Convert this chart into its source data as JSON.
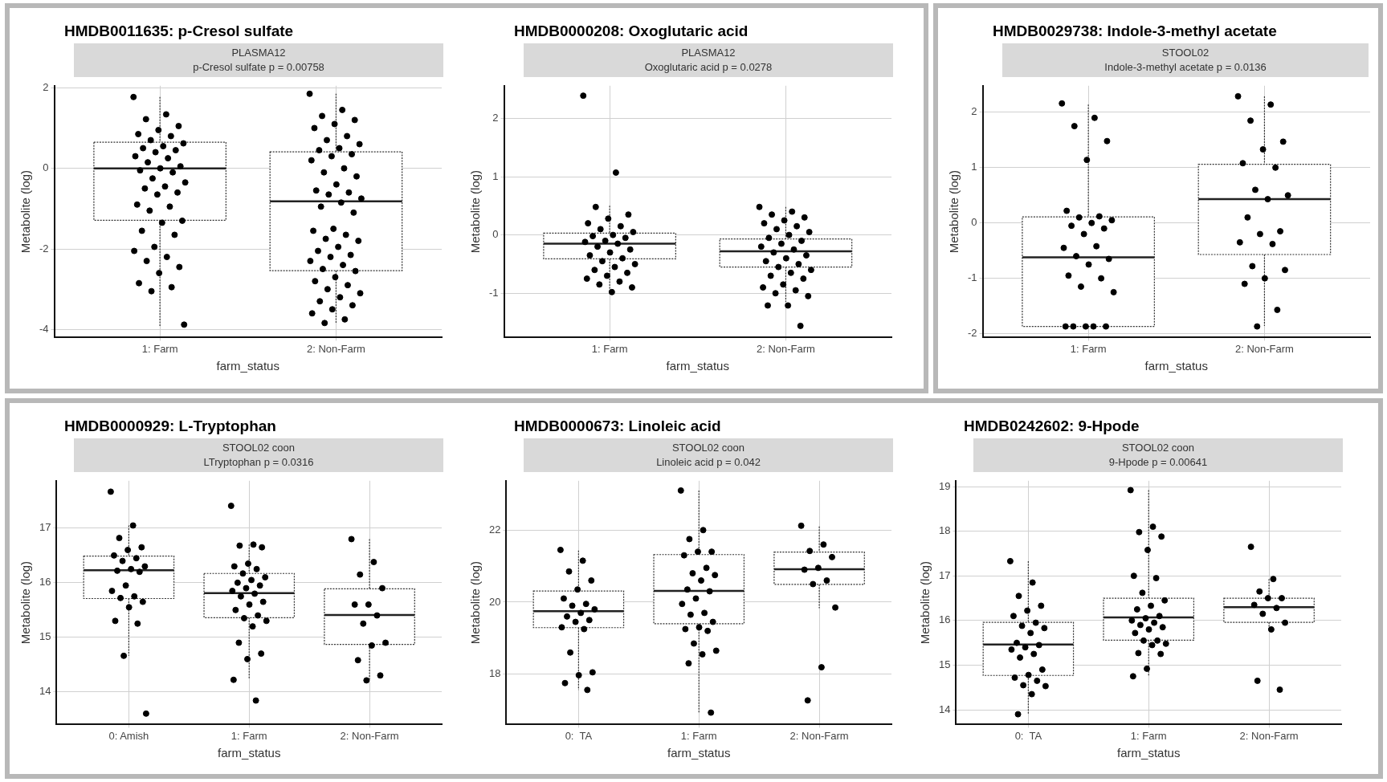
{
  "chart_data": [
    {
      "type": "box",
      "title": "HMDB0011635: p-Cresol sulfate",
      "subtitle": "PLASMA12",
      "annotations": [
        "p-Cresol sulfate p = 0.00758"
      ],
      "xlabel": "farm_status",
      "ylabel": "Metabolite (log)",
      "categories": [
        "1: Farm",
        "2: Non-Farm"
      ],
      "ylim": [
        -4.2,
        2.05
      ],
      "yticks": [
        -4,
        -2,
        0,
        2
      ],
      "grid": true,
      "marker": "circle",
      "boxes": [
        {
          "low": -3.92,
          "q1": -1.29,
          "median": 0,
          "q3": 0.65,
          "high": 1.77
        },
        {
          "low": -3.84,
          "q1": -2.54,
          "median": -0.82,
          "q3": 0.41,
          "high": 1.85
        }
      ],
      "series": [
        {
          "type": "scatter",
          "color": "#000000",
          "x": [
            "1: Farm",
            "1: Farm",
            "1: Farm",
            "1: Farm",
            "1: Farm",
            "1: Farm",
            "1: Farm",
            "1: Farm",
            "1: Farm",
            "1: Farm",
            "1: Farm",
            "1: Farm",
            "1: Farm",
            "1: Farm",
            "1: Farm",
            "1: Farm",
            "1: Farm",
            "1: Farm",
            "1: Farm",
            "1: Farm",
            "1: Farm",
            "1: Farm",
            "1: Farm",
            "1: Farm",
            "1: Farm",
            "1: Farm",
            "1: Farm",
            "1: Farm",
            "1: Farm",
            "1: Farm",
            "1: Farm",
            "1: Farm",
            "1: Farm",
            "1: Farm",
            "1: Farm",
            "1: Farm",
            "1: Farm",
            "1: Farm",
            "1: Farm",
            "1: Farm",
            "1: Farm",
            "1: Farm",
            "1: Farm"
          ],
          "values": [
            1.77,
            1.34,
            1.22,
            1.05,
            0.95,
            0.85,
            0.8,
            0.7,
            0.62,
            0.55,
            0.5,
            0.45,
            0.4,
            0.3,
            0.25,
            0.15,
            0.05,
            0,
            -0.05,
            -0.1,
            -0.25,
            -0.35,
            -0.45,
            -0.5,
            -0.6,
            -0.65,
            -0.9,
            -0.95,
            -1.05,
            -1.3,
            -1.35,
            -1.55,
            -1.65,
            -1.95,
            -2.05,
            -2.2,
            -2.3,
            -2.45,
            -2.6,
            -2.85,
            -2.95,
            -3.05,
            -3.88
          ]
        },
        {
          "type": "scatter",
          "color": "#000000",
          "x": [
            "2: Non-Farm",
            "2: Non-Farm",
            "2: Non-Farm",
            "2: Non-Farm",
            "2: Non-Farm",
            "2: Non-Farm",
            "2: Non-Farm",
            "2: Non-Farm",
            "2: Non-Farm",
            "2: Non-Farm",
            "2: Non-Farm",
            "2: Non-Farm",
            "2: Non-Farm",
            "2: Non-Farm",
            "2: Non-Farm",
            "2: Non-Farm",
            "2: Non-Farm",
            "2: Non-Farm",
            "2: Non-Farm",
            "2: Non-Farm",
            "2: Non-Farm",
            "2: Non-Farm",
            "2: Non-Farm",
            "2: Non-Farm",
            "2: Non-Farm",
            "2: Non-Farm",
            "2: Non-Farm",
            "2: Non-Farm",
            "2: Non-Farm",
            "2: Non-Farm",
            "2: Non-Farm",
            "2: Non-Farm",
            "2: Non-Farm",
            "2: Non-Farm",
            "2: Non-Farm",
            "2: Non-Farm",
            "2: Non-Farm",
            "2: Non-Farm",
            "2: Non-Farm",
            "2: Non-Farm",
            "2: Non-Farm",
            "2: Non-Farm",
            "2: Non-Farm",
            "2: Non-Farm",
            "2: Non-Farm",
            "2: Non-Farm",
            "2: Non-Farm",
            "2: Non-Farm",
            "2: Non-Farm",
            "2: Non-Farm"
          ],
          "values": [
            1.85,
            1.45,
            1.3,
            1.2,
            1.1,
            1.0,
            0.8,
            0.7,
            0.6,
            0.5,
            0.45,
            0.35,
            0.3,
            0.2,
            0,
            -0.1,
            -0.2,
            -0.4,
            -0.55,
            -0.6,
            -0.65,
            -0.75,
            -0.85,
            -0.95,
            -1.1,
            -1.5,
            -1.55,
            -1.65,
            -1.75,
            -1.8,
            -1.95,
            -2.05,
            -2.15,
            -2.2,
            -2.3,
            -2.4,
            -2.5,
            -2.55,
            -2.7,
            -2.8,
            -2.9,
            -3.0,
            -3.1,
            -3.2,
            -3.3,
            -3.4,
            -3.5,
            -3.6,
            -3.75,
            -3.84
          ]
        }
      ]
    },
    {
      "type": "box",
      "title": "HMDB0000208: Oxoglutaric acid",
      "subtitle": "PLASMA12",
      "annotations": [
        "Oxoglutaric acid p = 0.0278"
      ],
      "xlabel": "farm_status",
      "ylabel": "Metabolite (log)",
      "categories": [
        "1: Farm",
        "2: Non-Farm"
      ],
      "ylim": [
        -1.76,
        2.56
      ],
      "yticks": [
        -1,
        0,
        1,
        2
      ],
      "grid": true,
      "marker": "circle",
      "boxes": [
        {
          "low": -0.95,
          "q1": -0.41,
          "median": -0.15,
          "q3": 0.03,
          "high": 0.5
        },
        {
          "low": -1.15,
          "q1": -0.55,
          "median": -0.28,
          "q3": -0.07,
          "high": 0.48
        }
      ],
      "series": [
        {
          "type": "scatter",
          "color": "#000000",
          "x": [
            "1: Farm",
            "1: Farm",
            "1: Farm",
            "1: Farm",
            "1: Farm",
            "1: Farm",
            "1: Farm",
            "1: Farm",
            "1: Farm",
            "1: Farm",
            "1: Farm",
            "1: Farm",
            "1: Farm",
            "1: Farm",
            "1: Farm",
            "1: Farm",
            "1: Farm",
            "1: Farm",
            "1: Farm",
            "1: Farm",
            "1: Farm",
            "1: Farm",
            "1: Farm",
            "1: Farm",
            "1: Farm",
            "1: Farm",
            "1: Farm",
            "1: Farm",
            "1: Farm",
            "1: Farm",
            "1: Farm"
          ],
          "values": [
            2.39,
            1.07,
            0.48,
            0.35,
            0.28,
            0.2,
            0.15,
            0.1,
            0.05,
            0,
            -0.02,
            -0.05,
            -0.1,
            -0.12,
            -0.15,
            -0.2,
            -0.25,
            -0.3,
            -0.35,
            -0.4,
            -0.45,
            -0.5,
            -0.55,
            -0.6,
            -0.65,
            -0.7,
            -0.75,
            -0.8,
            -0.85,
            -0.9,
            -0.98
          ]
        },
        {
          "type": "scatter",
          "color": "#000000",
          "x": [
            "2: Non-Farm",
            "2: Non-Farm",
            "2: Non-Farm",
            "2: Non-Farm",
            "2: Non-Farm",
            "2: Non-Farm",
            "2: Non-Farm",
            "2: Non-Farm",
            "2: Non-Farm",
            "2: Non-Farm",
            "2: Non-Farm",
            "2: Non-Farm",
            "2: Non-Farm",
            "2: Non-Farm",
            "2: Non-Farm",
            "2: Non-Farm",
            "2: Non-Farm",
            "2: Non-Farm",
            "2: Non-Farm",
            "2: Non-Farm",
            "2: Non-Farm",
            "2: Non-Farm",
            "2: Non-Farm",
            "2: Non-Farm",
            "2: Non-Farm",
            "2: Non-Farm",
            "2: Non-Farm",
            "2: Non-Farm",
            "2: Non-Farm",
            "2: Non-Farm",
            "2: Non-Farm",
            "2: Non-Farm",
            "2: Non-Farm"
          ],
          "values": [
            0.48,
            0.4,
            0.35,
            0.3,
            0.25,
            0.2,
            0.15,
            0.1,
            0.05,
            0,
            -0.05,
            -0.1,
            -0.15,
            -0.2,
            -0.25,
            -0.3,
            -0.35,
            -0.4,
            -0.45,
            -0.5,
            -0.55,
            -0.6,
            -0.65,
            -0.7,
            -0.75,
            -0.85,
            -0.9,
            -0.95,
            -1.0,
            -1.05,
            -1.21,
            -1.21,
            -1.56
          ]
        }
      ]
    },
    {
      "type": "box",
      "title": "HMDB0029738: Indole-3-methyl acetate",
      "subtitle": "STOOL02",
      "annotations": [
        "Indole-3-methyl acetate p = 0.0136"
      ],
      "xlabel": "farm_status",
      "ylabel": "Metabolite (log)",
      "categories": [
        "1: Farm",
        "2: Non-Farm"
      ],
      "ylim": [
        -2.07,
        2.48
      ],
      "yticks": [
        -2,
        -1,
        0,
        1,
        2
      ],
      "grid": true,
      "marker": "circle",
      "boxes": [
        {
          "low": -1.87,
          "q1": -1.87,
          "median": -0.62,
          "q3": 0.11,
          "high": 2.14
        },
        {
          "low": -1.86,
          "q1": -0.57,
          "median": 0.43,
          "q3": 1.06,
          "high": 2.29
        }
      ],
      "series": [
        {
          "type": "scatter",
          "color": "#000000",
          "x": [
            "1: Farm",
            "1: Farm",
            "1: Farm",
            "1: Farm",
            "1: Farm",
            "1: Farm",
            "1: Farm",
            "1: Farm",
            "1: Farm",
            "1: Farm",
            "1: Farm",
            "1: Farm",
            "1: Farm",
            "1: Farm",
            "1: Farm",
            "1: Farm",
            "1: Farm",
            "1: Farm",
            "1: Farm",
            "1: Farm",
            "1: Farm",
            "1: Farm",
            "1: Farm",
            "1: Farm",
            "1: Farm",
            "1: Farm",
            "1: Farm"
          ],
          "values": [
            2.16,
            1.9,
            1.75,
            1.48,
            1.14,
            0.22,
            0.12,
            0.1,
            0.05,
            0,
            -0.05,
            -0.1,
            -0.2,
            -0.45,
            -0.42,
            -0.6,
            -0.65,
            -0.75,
            -0.95,
            -1.0,
            -1.15,
            -1.25,
            -1.87,
            -1.87,
            -1.87,
            -1.87,
            -1.87
          ]
        },
        {
          "type": "scatter",
          "color": "#000000",
          "x": [
            "2: Non-Farm",
            "2: Non-Farm",
            "2: Non-Farm",
            "2: Non-Farm",
            "2: Non-Farm",
            "2: Non-Farm",
            "2: Non-Farm",
            "2: Non-Farm",
            "2: Non-Farm",
            "2: Non-Farm",
            "2: Non-Farm",
            "2: Non-Farm",
            "2: Non-Farm",
            "2: Non-Farm",
            "2: Non-Farm",
            "2: Non-Farm",
            "2: Non-Farm",
            "2: Non-Farm",
            "2: Non-Farm",
            "2: Non-Farm",
            "2: Non-Farm"
          ],
          "values": [
            2.29,
            2.14,
            1.85,
            1.47,
            1.33,
            1.08,
            1.0,
            0.6,
            0.5,
            0.43,
            0.1,
            -0.15,
            -0.2,
            -0.35,
            -0.38,
            -0.78,
            -0.85,
            -1.0,
            -1.1,
            -1.57,
            -1.87
          ]
        }
      ]
    },
    {
      "type": "box",
      "title": "HMDB0000929: L-Tryptophan",
      "subtitle": "STOOL02 coon",
      "annotations": [
        "LTryptophan p = 0.0316"
      ],
      "xlabel": "farm_status",
      "ylabel": "Metabolite (log)",
      "categories": [
        "0: Amish",
        "1: Farm",
        "2: Non-Farm"
      ],
      "ylim": [
        13.4,
        17.87
      ],
      "yticks": [
        14,
        15,
        16,
        17
      ],
      "grid": true,
      "marker": "circle",
      "boxes": [
        {
          "low": 14.66,
          "q1": 15.71,
          "median": 16.23,
          "q3": 16.49,
          "high": 17.05
        },
        {
          "low": 14.24,
          "q1": 15.36,
          "median": 15.81,
          "q3": 16.17,
          "high": 16.7
        },
        {
          "low": 14.21,
          "q1": 14.87,
          "median": 15.41,
          "q3": 15.89,
          "high": 16.8
        }
      ],
      "series": [
        {
          "type": "scatter",
          "color": "#000000",
          "x": [
            "0: Amish",
            "0: Amish",
            "0: Amish",
            "0: Amish",
            "0: Amish",
            "0: Amish",
            "0: Amish",
            "0: Amish",
            "0: Amish",
            "0: Amish",
            "0: Amish",
            "0: Amish",
            "0: Amish",
            "0: Amish",
            "0: Amish",
            "0: Amish",
            "0: Amish",
            "0: Amish",
            "0: Amish",
            "0: Amish",
            "0: Amish",
            "0: Amish"
          ],
          "values": [
            17.67,
            17.05,
            16.82,
            16.65,
            16.6,
            16.5,
            16.45,
            16.4,
            16.3,
            16.25,
            16.22,
            16.2,
            15.95,
            15.85,
            15.75,
            15.72,
            15.65,
            15.55,
            15.3,
            15.25,
            14.66,
            13.6
          ]
        },
        {
          "type": "scatter",
          "color": "#000000",
          "x": [
            "1: Farm",
            "1: Farm",
            "1: Farm",
            "1: Farm",
            "1: Farm",
            "1: Farm",
            "1: Farm",
            "1: Farm",
            "1: Farm",
            "1: Farm",
            "1: Farm",
            "1: Farm",
            "1: Farm",
            "1: Farm",
            "1: Farm",
            "1: Farm",
            "1: Farm",
            "1: Farm",
            "1: Farm",
            "1: Farm",
            "1: Farm",
            "1: Farm",
            "1: Farm",
            "1: Farm",
            "1: Farm",
            "1: Farm",
            "1: Farm",
            "1: Farm"
          ],
          "values": [
            17.41,
            16.7,
            16.68,
            16.65,
            16.35,
            16.3,
            16.25,
            16.17,
            16.1,
            16.05,
            16.0,
            15.95,
            15.9,
            15.85,
            15.8,
            15.75,
            15.65,
            15.6,
            15.5,
            15.4,
            15.35,
            15.3,
            15.2,
            14.9,
            14.7,
            14.6,
            14.22,
            13.84
          ]
        },
        {
          "type": "scatter",
          "color": "#000000",
          "x": [
            "2: Non-Farm",
            "2: Non-Farm",
            "2: Non-Farm",
            "2: Non-Farm",
            "2: Non-Farm",
            "2: Non-Farm",
            "2: Non-Farm",
            "2: Non-Farm",
            "2: Non-Farm",
            "2: Non-Farm",
            "2: Non-Farm",
            "2: Non-Farm",
            "2: Non-Farm"
          ],
          "values": [
            16.8,
            16.38,
            16.15,
            15.9,
            15.6,
            15.6,
            15.4,
            15.25,
            14.9,
            14.85,
            14.58,
            14.3,
            14.21
          ]
        }
      ]
    },
    {
      "type": "box",
      "title": "HMDB0000673: Linoleic acid",
      "subtitle": "STOOL02 coon",
      "annotations": [
        "Linoleic acid p = 0.042"
      ],
      "xlabel": "farm_status",
      "ylabel": "Metabolite (log)",
      "categories": [
        "0:  TA",
        "1: Farm",
        "2: Non-Farm"
      ],
      "ylim": [
        16.6,
        23.37
      ],
      "yticks": [
        18,
        20,
        22
      ],
      "grid": true,
      "marker": "circle",
      "boxes": [
        {
          "low": 17.56,
          "q1": 19.29,
          "median": 19.75,
          "q3": 20.31,
          "high": 21.43
        },
        {
          "low": 16.93,
          "q1": 19.4,
          "median": 20.31,
          "q3": 21.32,
          "high": 23.1
        },
        {
          "low": 19.83,
          "q1": 20.49,
          "median": 20.91,
          "q3": 21.39,
          "high": 22.1
        }
      ],
      "series": [
        {
          "type": "scatter",
          "color": "#000000",
          "x": [
            "0:  TA",
            "0:  TA",
            "0:  TA",
            "0:  TA",
            "0:  TA",
            "0:  TA",
            "0:  TA",
            "0:  TA",
            "0:  TA",
            "0:  TA",
            "0:  TA",
            "0:  TA",
            "0:  TA",
            "0:  TA",
            "0:  TA",
            "0:  TA",
            "0:  TA",
            "0:  TA",
            "0:  TA",
            "0:  TA"
          ],
          "values": [
            21.45,
            21.15,
            20.85,
            20.6,
            20.35,
            20.1,
            19.95,
            19.9,
            19.8,
            19.7,
            19.6,
            19.5,
            19.45,
            19.3,
            19.25,
            18.6,
            18.05,
            17.97,
            17.75,
            17.56
          ]
        },
        {
          "type": "scatter",
          "color": "#000000",
          "x": [
            "1: Farm",
            "1: Farm",
            "1: Farm",
            "1: Farm",
            "1: Farm",
            "1: Farm",
            "1: Farm",
            "1: Farm",
            "1: Farm",
            "1: Farm",
            "1: Farm",
            "1: Farm",
            "1: Farm",
            "1: Farm",
            "1: Farm",
            "1: Farm",
            "1: Farm",
            "1: Farm",
            "1: Farm",
            "1: Farm",
            "1: Farm",
            "1: Farm",
            "1: Farm",
            "1: Farm",
            "1: Farm"
          ],
          "values": [
            23.1,
            22.0,
            21.75,
            21.4,
            21.4,
            21.3,
            20.95,
            20.8,
            20.75,
            20.6,
            20.35,
            20.3,
            20.1,
            19.95,
            19.7,
            19.65,
            19.45,
            19.3,
            19.25,
            19.2,
            18.85,
            18.65,
            18.55,
            18.3,
            16.93
          ]
        },
        {
          "type": "scatter",
          "color": "#000000",
          "x": [
            "2: Non-Farm",
            "2: Non-Farm",
            "2: Non-Farm",
            "2: Non-Farm",
            "2: Non-Farm",
            "2: Non-Farm",
            "2: Non-Farm",
            "2: Non-Farm",
            "2: Non-Farm",
            "2: Non-Farm",
            "2: Non-Farm"
          ],
          "values": [
            22.12,
            21.6,
            21.42,
            21.25,
            20.95,
            20.9,
            20.6,
            20.5,
            19.85,
            18.19,
            17.27
          ]
        }
      ]
    },
    {
      "type": "box",
      "title": "HMDB0242602: 9-Hpode",
      "subtitle": "STOOL02 coon",
      "annotations": [
        "9-Hpode p = 0.00641"
      ],
      "xlabel": "farm_status",
      "ylabel": "Metabolite (log)",
      "categories": [
        "0:  TA",
        "1: Farm",
        "2: Non-Farm"
      ],
      "ylim": [
        13.67,
        19.13
      ],
      "yticks": [
        14,
        15,
        16,
        17,
        18,
        19
      ],
      "grid": true,
      "marker": "circle",
      "boxes": [
        {
          "low": 13.9,
          "q1": 14.77,
          "median": 15.46,
          "q3": 15.96,
          "high": 17.33
        },
        {
          "low": 14.75,
          "q1": 15.56,
          "median": 16.07,
          "q3": 16.5,
          "high": 18.92
        },
        {
          "low": 15.8,
          "q1": 15.96,
          "median": 16.3,
          "q3": 16.5,
          "high": 16.93
        }
      ],
      "series": [
        {
          "type": "scatter",
          "color": "#000000",
          "x": [
            "0:  TA",
            "0:  TA",
            "0:  TA",
            "0:  TA",
            "0:  TA",
            "0:  TA",
            "0:  TA",
            "0:  TA",
            "0:  TA",
            "0:  TA",
            "0:  TA",
            "0:  TA",
            "0:  TA",
            "0:  TA",
            "0:  TA",
            "0:  TA",
            "0:  TA",
            "0:  TA",
            "0:  TA",
            "0:  TA",
            "0:  TA",
            "0:  TA",
            "0:  TA",
            "0:  TA"
          ],
          "values": [
            17.33,
            16.85,
            16.55,
            16.33,
            16.22,
            16.1,
            15.95,
            15.88,
            15.83,
            15.72,
            15.5,
            15.45,
            15.4,
            15.35,
            15.25,
            15.17,
            14.9,
            14.78,
            14.72,
            14.65,
            14.55,
            14.53,
            14.35,
            13.9
          ]
        },
        {
          "type": "scatter",
          "color": "#000000",
          "x": [
            "1: Farm",
            "1: Farm",
            "1: Farm",
            "1: Farm",
            "1: Farm",
            "1: Farm",
            "1: Farm",
            "1: Farm",
            "1: Farm",
            "1: Farm",
            "1: Farm",
            "1: Farm",
            "1: Farm",
            "1: Farm",
            "1: Farm",
            "1: Farm",
            "1: Farm",
            "1: Farm",
            "1: Farm",
            "1: Farm",
            "1: Farm",
            "1: Farm",
            "1: Farm",
            "1: Farm",
            "1: Farm",
            "1: Farm",
            "1: Farm"
          ],
          "values": [
            18.92,
            18.1,
            17.98,
            17.88,
            17.58,
            17.0,
            16.95,
            16.62,
            16.45,
            16.33,
            16.25,
            16.1,
            16.05,
            16.0,
            15.95,
            15.9,
            15.85,
            15.8,
            15.72,
            15.55,
            15.55,
            15.48,
            15.45,
            15.27,
            15.25,
            14.92,
            14.75
          ]
        },
        {
          "type": "scatter",
          "color": "#000000",
          "x": [
            "2: Non-Farm",
            "2: Non-Farm",
            "2: Non-Farm",
            "2: Non-Farm",
            "2: Non-Farm",
            "2: Non-Farm",
            "2: Non-Farm",
            "2: Non-Farm",
            "2: Non-Farm",
            "2: Non-Farm",
            "2: Non-Farm",
            "2: Non-Farm"
          ],
          "values": [
            17.65,
            16.93,
            16.65,
            16.5,
            16.5,
            16.35,
            16.28,
            16.15,
            15.95,
            15.8,
            14.65,
            14.45
          ]
        }
      ]
    }
  ]
}
